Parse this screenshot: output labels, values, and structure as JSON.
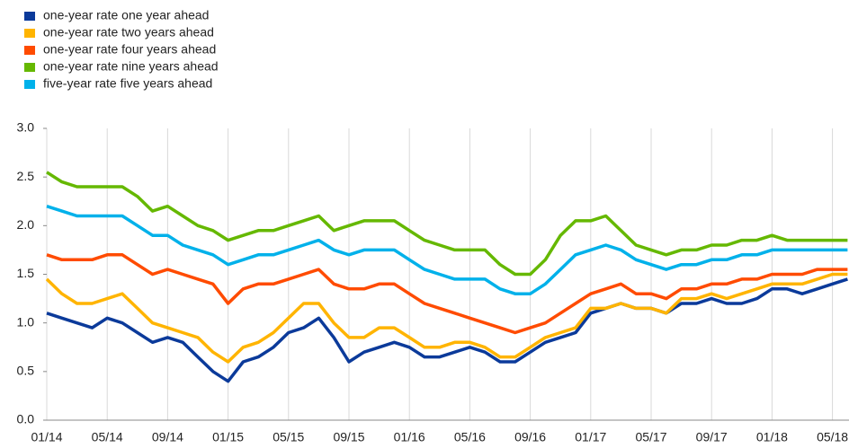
{
  "chart_data": {
    "type": "line",
    "categories": [
      "01/14",
      null,
      null,
      null,
      "05/14",
      null,
      null,
      null,
      "09/14",
      null,
      null,
      null,
      "01/15",
      null,
      null,
      null,
      "05/15",
      null,
      null,
      null,
      "09/15",
      null,
      null,
      null,
      "01/16",
      null,
      null,
      null,
      "05/16",
      null,
      null,
      null,
      "09/16",
      null,
      null,
      null,
      "01/17",
      null,
      null,
      null,
      "05/17",
      null,
      null,
      null,
      "09/17",
      null,
      null,
      null,
      "01/18",
      null,
      null,
      null,
      "05/18",
      null
    ],
    "series": [
      {
        "name": "one-year rate one year ahead",
        "color": "#0b3a9a",
        "values": [
          1.1,
          1.05,
          1.0,
          0.95,
          1.05,
          1.0,
          0.9,
          0.8,
          0.85,
          0.8,
          0.65,
          0.5,
          0.4,
          0.6,
          0.65,
          0.75,
          0.9,
          0.95,
          1.05,
          0.85,
          0.6,
          0.7,
          0.75,
          0.8,
          0.75,
          0.65,
          0.65,
          0.7,
          0.75,
          0.7,
          0.6,
          0.6,
          0.7,
          0.8,
          0.85,
          0.9,
          1.1,
          1.15,
          1.2,
          1.15,
          1.15,
          1.1,
          1.2,
          1.2,
          1.25,
          1.2,
          1.2,
          1.25,
          1.35,
          1.35,
          1.3,
          1.35,
          1.4,
          1.45
        ]
      },
      {
        "name": "one-year rate two years ahead",
        "color": "#ffb400",
        "values": [
          1.45,
          1.3,
          1.2,
          1.2,
          1.25,
          1.3,
          1.15,
          1.0,
          0.95,
          0.9,
          0.85,
          0.7,
          0.6,
          0.75,
          0.8,
          0.9,
          1.05,
          1.2,
          1.2,
          1.0,
          0.85,
          0.85,
          0.95,
          0.95,
          0.85,
          0.75,
          0.75,
          0.8,
          0.8,
          0.75,
          0.65,
          0.65,
          0.75,
          0.85,
          0.9,
          0.95,
          1.15,
          1.15,
          1.2,
          1.15,
          1.15,
          1.1,
          1.25,
          1.25,
          1.3,
          1.25,
          1.3,
          1.35,
          1.4,
          1.4,
          1.4,
          1.45,
          1.5,
          1.5
        ]
      },
      {
        "name": "one-year rate four years ahead",
        "color": "#ff4b00",
        "values": [
          1.7,
          1.65,
          1.65,
          1.65,
          1.7,
          1.7,
          1.6,
          1.5,
          1.55,
          1.5,
          1.45,
          1.4,
          1.2,
          1.35,
          1.4,
          1.4,
          1.45,
          1.5,
          1.55,
          1.4,
          1.35,
          1.35,
          1.4,
          1.4,
          1.3,
          1.2,
          1.15,
          1.1,
          1.05,
          1.0,
          0.95,
          0.9,
          0.95,
          1.0,
          1.1,
          1.2,
          1.3,
          1.35,
          1.4,
          1.3,
          1.3,
          1.25,
          1.35,
          1.35,
          1.4,
          1.4,
          1.45,
          1.45,
          1.5,
          1.5,
          1.5,
          1.55,
          1.55,
          1.55
        ]
      },
      {
        "name": "one-year rate nine years ahead",
        "color": "#65b800",
        "values": [
          2.55,
          2.45,
          2.4,
          2.4,
          2.4,
          2.4,
          2.3,
          2.15,
          2.2,
          2.1,
          2.0,
          1.95,
          1.85,
          1.9,
          1.95,
          1.95,
          2.0,
          2.05,
          2.1,
          1.95,
          2.0,
          2.05,
          2.05,
          2.05,
          1.95,
          1.85,
          1.8,
          1.75,
          1.75,
          1.75,
          1.6,
          1.5,
          1.5,
          1.65,
          1.9,
          2.05,
          2.05,
          2.1,
          1.95,
          1.8,
          1.75,
          1.7,
          1.75,
          1.75,
          1.8,
          1.8,
          1.85,
          1.85,
          1.9,
          1.85,
          1.85,
          1.85,
          1.85,
          1.85
        ]
      },
      {
        "name": "five-year rate five years ahead",
        "color": "#00b1ea",
        "values": [
          2.2,
          2.15,
          2.1,
          2.1,
          2.1,
          2.1,
          2.0,
          1.9,
          1.9,
          1.8,
          1.75,
          1.7,
          1.6,
          1.65,
          1.7,
          1.7,
          1.75,
          1.8,
          1.85,
          1.75,
          1.7,
          1.75,
          1.75,
          1.75,
          1.65,
          1.55,
          1.5,
          1.45,
          1.45,
          1.45,
          1.35,
          1.3,
          1.3,
          1.4,
          1.55,
          1.7,
          1.75,
          1.8,
          1.75,
          1.65,
          1.6,
          1.55,
          1.6,
          1.6,
          1.65,
          1.65,
          1.7,
          1.7,
          1.75,
          1.75,
          1.75,
          1.75,
          1.75,
          1.75
        ]
      }
    ],
    "ylim": [
      0,
      3
    ],
    "yticks": [
      {
        "value": 0,
        "label": "0.0"
      },
      0.5,
      {
        "value": 1,
        "label": "1.0"
      },
      1.5,
      {
        "value": 2,
        "label": "2.0"
      },
      2.5,
      {
        "value": 3,
        "label": "3.0"
      }
    ],
    "grid": "x",
    "legend": "top-left"
  }
}
